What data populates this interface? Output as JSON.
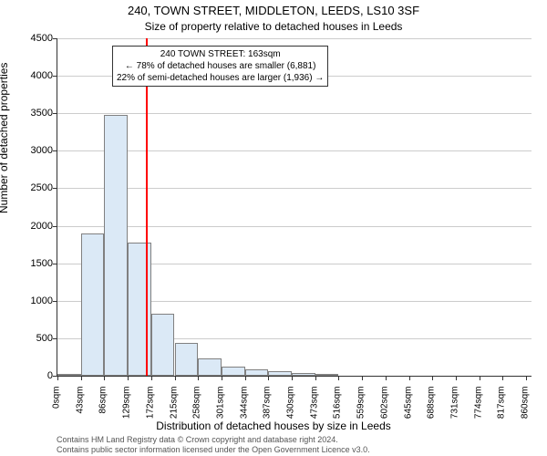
{
  "title": "240, TOWN STREET, MIDDLETON, LEEDS, LS10 3SF",
  "subtitle": "Size of property relative to detached houses in Leeds",
  "chart": {
    "type": "histogram",
    "ylabel": "Number of detached properties",
    "xlabel": "Distribution of detached houses by size in Leeds",
    "ylim": [
      0,
      4500
    ],
    "ytick_step": 500,
    "yticks": [
      0,
      500,
      1000,
      1500,
      2000,
      2500,
      3000,
      3500,
      4000,
      4500
    ],
    "xticks": [
      "0sqm",
      "43sqm",
      "86sqm",
      "129sqm",
      "172sqm",
      "215sqm",
      "258sqm",
      "301sqm",
      "344sqm",
      "387sqm",
      "430sqm",
      "473sqm",
      "516sqm",
      "559sqm",
      "602sqm",
      "645sqm",
      "688sqm",
      "731sqm",
      "774sqm",
      "817sqm",
      "860sqm"
    ],
    "xtick_values": [
      0,
      43,
      86,
      129,
      172,
      215,
      258,
      301,
      344,
      387,
      430,
      473,
      516,
      559,
      602,
      645,
      688,
      731,
      774,
      817,
      860
    ],
    "xmax": 870,
    "bar_color": "#dbe9f6",
    "bar_border_color": "#808080",
    "grid_color": "#cccccc",
    "background_color": "#ffffff",
    "bars": [
      {
        "x0": 0,
        "x1": 43,
        "value": 10
      },
      {
        "x0": 43,
        "x1": 86,
        "value": 1900
      },
      {
        "x0": 86,
        "x1": 129,
        "value": 3480
      },
      {
        "x0": 129,
        "x1": 172,
        "value": 1770
      },
      {
        "x0": 172,
        "x1": 215,
        "value": 830
      },
      {
        "x0": 215,
        "x1": 258,
        "value": 440
      },
      {
        "x0": 258,
        "x1": 301,
        "value": 230
      },
      {
        "x0": 301,
        "x1": 344,
        "value": 120
      },
      {
        "x0": 344,
        "x1": 387,
        "value": 90
      },
      {
        "x0": 387,
        "x1": 430,
        "value": 60
      },
      {
        "x0": 430,
        "x1": 473,
        "value": 40
      },
      {
        "x0": 473,
        "x1": 516,
        "value": 30
      },
      {
        "x0": 516,
        "x1": 559,
        "value": 0
      },
      {
        "x0": 559,
        "x1": 602,
        "value": 0
      },
      {
        "x0": 602,
        "x1": 645,
        "value": 0
      },
      {
        "x0": 645,
        "x1": 688,
        "value": 0
      },
      {
        "x0": 688,
        "x1": 731,
        "value": 0
      },
      {
        "x0": 731,
        "x1": 774,
        "value": 0
      },
      {
        "x0": 774,
        "x1": 817,
        "value": 0
      },
      {
        "x0": 817,
        "x1": 860,
        "value": 0
      }
    ],
    "reference_line": {
      "x": 163,
      "color": "#ff0000"
    },
    "annotation": {
      "line1": "240 TOWN STREET: 163sqm",
      "line2": "← 78% of detached houses are smaller (6,881)",
      "line3": "22% of semi-detached houses are larger (1,936) →"
    }
  },
  "footer": {
    "line1": "Contains HM Land Registry data © Crown copyright and database right 2024.",
    "line2": "Contains public sector information licensed under the Open Government Licence v3.0."
  }
}
